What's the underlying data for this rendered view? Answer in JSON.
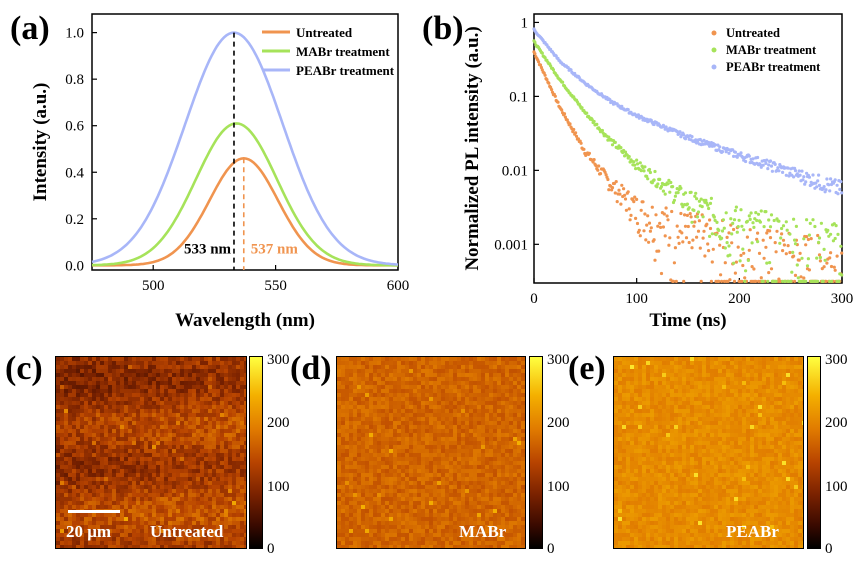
{
  "chart_data": [
    {
      "type": "line",
      "panel": "(a)",
      "xlabel": "Wavelength (nm)",
      "ylabel": "Intensity (a.u.)",
      "xlim": [
        475,
        600
      ],
      "ylim": [
        -0.02,
        1.08
      ],
      "xticks": [
        "500",
        "550",
        "600"
      ],
      "yticks": [
        "0.0",
        "0.2",
        "0.4",
        "0.6",
        "0.8",
        "1.0"
      ],
      "legend_position": "top-right",
      "series": [
        {
          "name": "Untreated",
          "color": "#f0944f",
          "peak_nm": 537,
          "peak": 0.46,
          "fwhm_nm": 33
        },
        {
          "name": "MABr treatment",
          "color": "#a6e35a",
          "peak_nm": 534,
          "peak": 0.61,
          "fwhm_nm": 39
        },
        {
          "name": "PEABr treatment",
          "color": "#a8b6f8",
          "peak_nm": 533,
          "peak": 1.0,
          "fwhm_nm": 47
        }
      ],
      "annotations": [
        {
          "text": "533 nm",
          "x": 533,
          "color": "#000000"
        },
        {
          "text": "537 nm",
          "x": 537,
          "color": "#f0944f"
        }
      ]
    },
    {
      "type": "scatter",
      "panel": "(b)",
      "xlabel": "Time (ns)",
      "ylabel": "Normalized PL intensity (a.u.)",
      "xlim": [
        0,
        300
      ],
      "ylim": [
        0.0003,
        1.3
      ],
      "yscale": "log",
      "xticks": [
        "0",
        "100",
        "200",
        "300"
      ],
      "yticks": [
        "0.001",
        "0.01",
        "0.1",
        "1"
      ],
      "legend_position": "top-right",
      "series": [
        {
          "name": "Untreated",
          "color": "#f0944f",
          "t": [
            0,
            25,
            50,
            75,
            100,
            150,
            200,
            250,
            300
          ],
          "y": [
            0.4,
            0.072,
            0.018,
            0.0065,
            0.003,
            0.0012,
            0.00075,
            0.00058,
            0.0005
          ]
        },
        {
          "name": "MABr treatment",
          "color": "#a6e35a",
          "t": [
            0,
            25,
            50,
            75,
            100,
            150,
            200,
            250,
            300
          ],
          "y": [
            0.55,
            0.17,
            0.06,
            0.025,
            0.012,
            0.0038,
            0.0017,
            0.001,
            0.00075
          ]
        },
        {
          "name": "PEABr treatment",
          "color": "#a8b6f8",
          "t": [
            0,
            25,
            50,
            75,
            100,
            150,
            200,
            250,
            300
          ],
          "y": [
            0.8,
            0.3,
            0.15,
            0.085,
            0.055,
            0.028,
            0.016,
            0.0095,
            0.0055
          ]
        }
      ]
    },
    {
      "type": "heatmap",
      "panel": "(c)",
      "label": "Untreated",
      "scale_bar": "20 μm",
      "colorbar_ticks": [
        "0",
        "100",
        "200",
        "300"
      ],
      "colorbar_range": [
        0,
        300
      ],
      "mean_level": 0.5,
      "base_color": "#c8600c"
    },
    {
      "type": "heatmap",
      "panel": "(d)",
      "label": "MABr",
      "colorbar_ticks": [
        "0",
        "100",
        "200",
        "300"
      ],
      "colorbar_range": [
        0,
        300
      ],
      "mean_level": 0.6,
      "base_color": "#e8900f"
    },
    {
      "type": "heatmap",
      "panel": "(e)",
      "label": "PEABr",
      "colorbar_ticks": [
        "0",
        "100",
        "200",
        "300"
      ],
      "colorbar_range": [
        0,
        300
      ],
      "mean_level": 0.72,
      "base_color": "#f2b71c"
    }
  ]
}
